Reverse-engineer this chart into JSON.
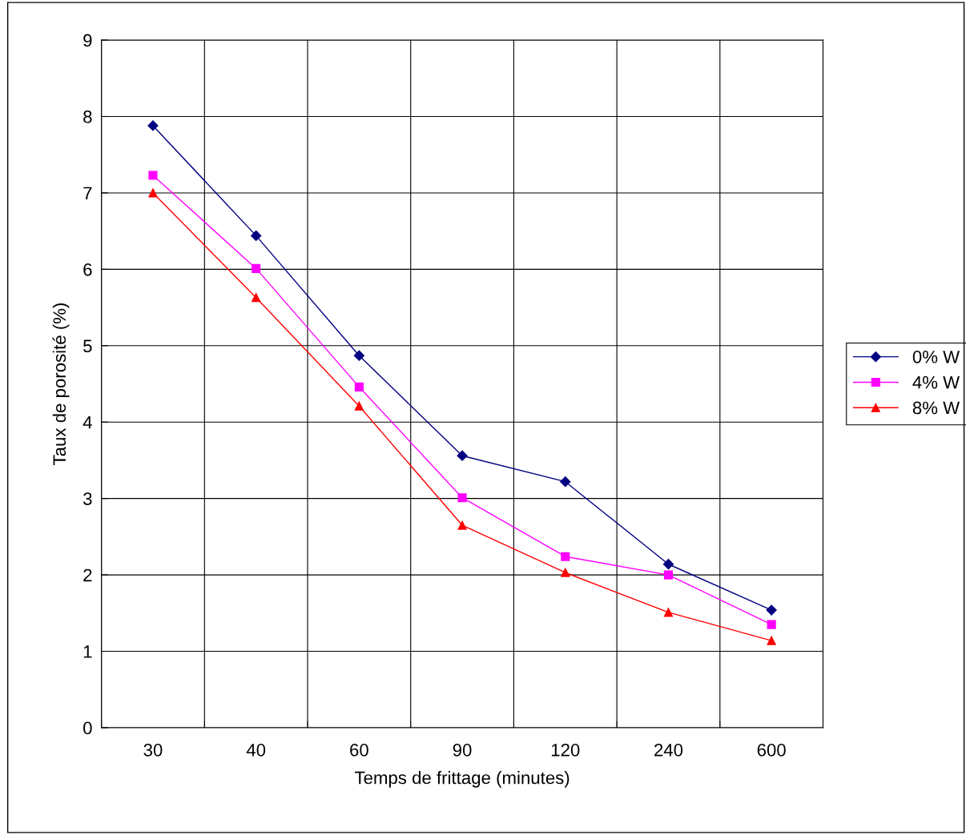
{
  "chart_data": {
    "type": "line",
    "xlabel": "Temps de frittage (minutes)",
    "ylabel": "Taux de porosité (%)",
    "categories": [
      "30",
      "40",
      "60",
      "90",
      "120",
      "240",
      "600"
    ],
    "series": [
      {
        "name": "0% W",
        "color": "#000080",
        "marker": "diamond",
        "values": [
          7.88,
          6.44,
          4.87,
          3.56,
          3.22,
          2.14,
          1.54
        ]
      },
      {
        "name": "4% W",
        "color": "#ff00ff",
        "marker": "square",
        "values": [
          7.23,
          6.01,
          4.46,
          3.01,
          2.24,
          2.0,
          1.35
        ]
      },
      {
        "name": "8% W",
        "color": "#ff0000",
        "marker": "triangle",
        "values": [
          7.0,
          5.63,
          4.21,
          2.65,
          2.03,
          1.51,
          1.14
        ]
      }
    ],
    "ylim": [
      0,
      9
    ],
    "yticks": [
      0,
      1,
      2,
      3,
      4,
      5,
      6,
      7,
      8,
      9
    ],
    "grid": true,
    "legend": "right",
    "line_style": "solid"
  }
}
